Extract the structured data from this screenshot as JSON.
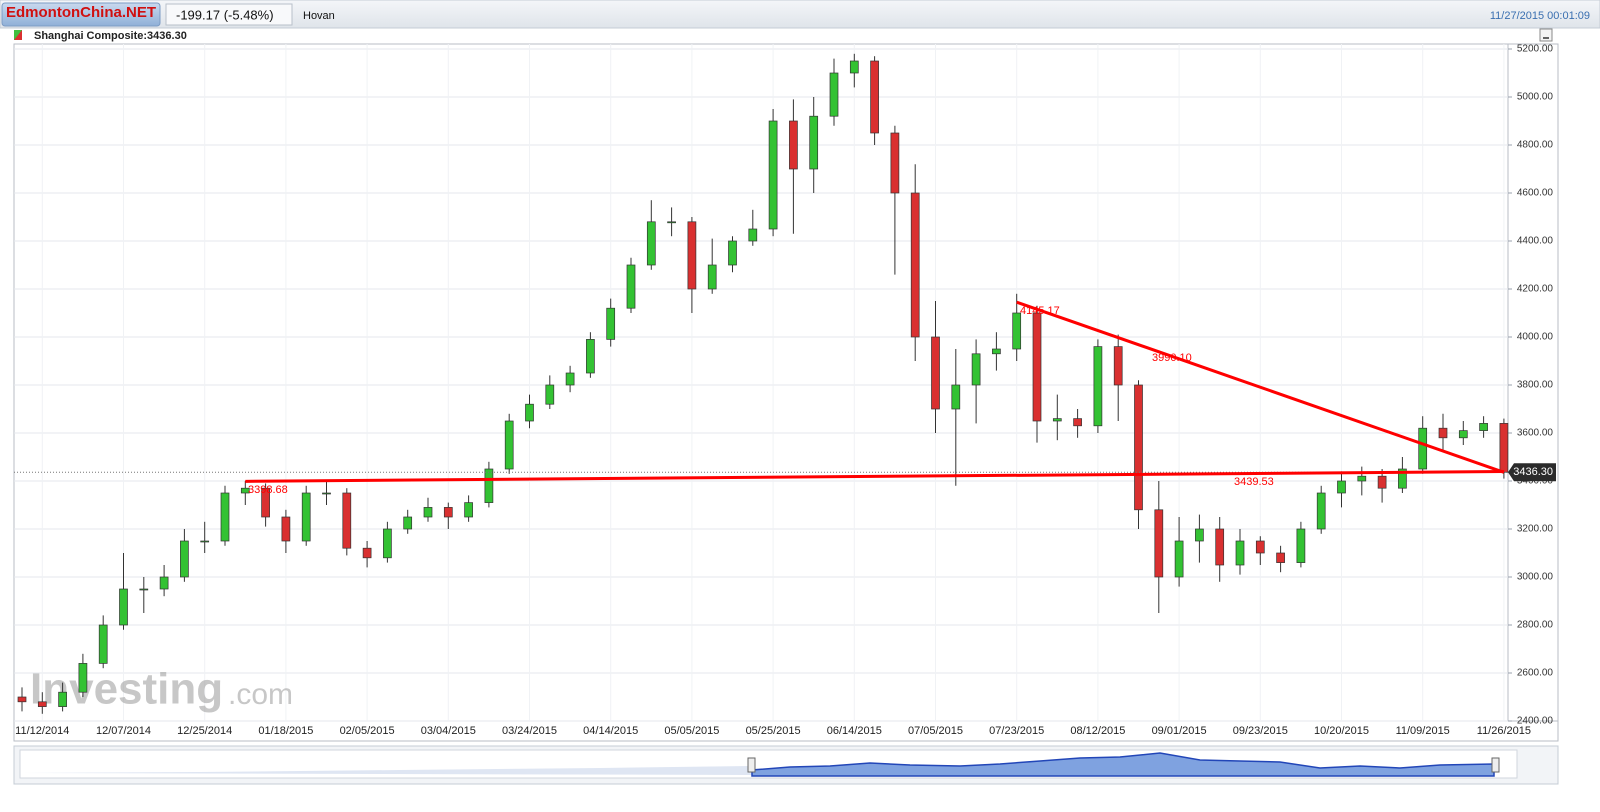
{
  "header": {
    "watermark": "EdmontonChina.NET",
    "change": "-199.17 (-5.48%)",
    "user": "Hovan",
    "timestamp": "11/27/2015 00:01:09"
  },
  "chart_data": {
    "type": "candlestick",
    "title": "Shanghai Composite:3436.30",
    "categories": [
      null,
      "11/12/2014",
      null,
      null,
      null,
      "12/07/2014",
      null,
      null,
      null,
      "12/25/2014",
      null,
      null,
      null,
      "01/18/2015",
      null,
      null,
      null,
      "02/05/2015",
      null,
      null,
      null,
      "03/04/2015",
      null,
      null,
      null,
      "03/24/2015",
      null,
      null,
      null,
      "04/14/2015",
      null,
      null,
      null,
      "05/05/2015",
      null,
      null,
      null,
      "05/25/2015",
      null,
      null,
      null,
      "06/14/2015",
      null,
      null,
      null,
      "07/05/2015",
      null,
      null,
      null,
      "07/23/2015",
      null,
      null,
      null,
      "08/12/2015",
      null,
      null,
      null,
      "09/01/2015",
      null,
      null,
      null,
      "09/23/2015",
      null,
      null,
      null,
      "10/20/2015",
      null,
      null,
      null,
      "11/09/2015",
      null,
      null,
      null,
      "11/26/2015"
    ],
    "open": [
      2500,
      2480,
      2460,
      2520,
      2640,
      2800,
      2950,
      2950,
      3000,
      3150,
      3150,
      3350,
      3370,
      3250,
      3150,
      3350,
      3350,
      3120,
      3080,
      3200,
      3250,
      3290,
      3250,
      3310,
      3450,
      3650,
      3720,
      3800,
      3850,
      3990,
      4120,
      4300,
      4480,
      4480,
      4200,
      4300,
      4400,
      4450,
      4900,
      4700,
      4920,
      5100,
      5150,
      4850,
      4600,
      4000,
      3700,
      3800,
      3930,
      3950,
      4100,
      3650,
      3660,
      3630,
      3960,
      3800,
      3280,
      3000,
      3150,
      3200,
      3050,
      3150,
      3100,
      3060,
      3200,
      3350,
      3400,
      3420,
      3370,
      3450,
      3620,
      3580,
      3610,
      3640
    ],
    "high": [
      2540,
      2520,
      2560,
      2680,
      2840,
      3100,
      3000,
      3050,
      3200,
      3230,
      3380,
      3400,
      3390,
      3280,
      3380,
      3400,
      3370,
      3150,
      3230,
      3280,
      3330,
      3310,
      3340,
      3480,
      3680,
      3760,
      3840,
      3880,
      4020,
      4160,
      4330,
      4570,
      4540,
      4500,
      4410,
      4420,
      4530,
      4950,
      4990,
      5000,
      5160,
      5180,
      5170,
      4880,
      4720,
      4150,
      3950,
      3990,
      4020,
      4180,
      4130,
      3760,
      3700,
      3990,
      4010,
      3820,
      3400,
      3250,
      3260,
      3250,
      3200,
      3170,
      3130,
      3230,
      3380,
      3440,
      3460,
      3450,
      3500,
      3670,
      3680,
      3650,
      3670,
      3660
    ],
    "low": [
      2440,
      2430,
      2440,
      2500,
      2620,
      2780,
      2850,
      2920,
      2980,
      3100,
      3130,
      3300,
      3210,
      3100,
      3130,
      3300,
      3090,
      3040,
      3060,
      3180,
      3230,
      3200,
      3230,
      3290,
      3430,
      3620,
      3700,
      3770,
      3830,
      3960,
      4100,
      4280,
      4420,
      4100,
      4180,
      4270,
      4380,
      4420,
      4430,
      4600,
      4880,
      5040,
      4800,
      4260,
      3900,
      3600,
      3380,
      3640,
      3860,
      3900,
      3560,
      3570,
      3580,
      3600,
      3650,
      3200,
      2850,
      2960,
      3060,
      2980,
      3010,
      3050,
      3020,
      3040,
      3180,
      3290,
      3340,
      3310,
      3350,
      3430,
      3530,
      3550,
      3580,
      3410
    ],
    "close": [
      2480,
      2460,
      2520,
      2640,
      2800,
      2950,
      2950,
      3000,
      3150,
      3150,
      3350,
      3370,
      3250,
      3150,
      3350,
      3350,
      3120,
      3080,
      3200,
      3250,
      3290,
      3250,
      3310,
      3450,
      3650,
      3720,
      3800,
      3850,
      3990,
      4120,
      4300,
      4480,
      4480,
      4200,
      4300,
      4400,
      4450,
      4900,
      4700,
      4920,
      5100,
      5150,
      4850,
      4600,
      4000,
      3700,
      3800,
      3930,
      3950,
      4100,
      3650,
      3660,
      3630,
      3960,
      3800,
      3280,
      3000,
      3150,
      3200,
      3050,
      3150,
      3100,
      3060,
      3200,
      3350,
      3400,
      3420,
      3370,
      3450,
      3620,
      3580,
      3610,
      3640,
      3436.3
    ],
    "up_color": "#33c233",
    "down_color": "#d93030",
    "ylim": [
      2400,
      5200
    ],
    "yticks": [
      {
        "value": 2400,
        "label": "2400.00"
      },
      {
        "value": 2600,
        "label": "2600.00"
      },
      {
        "value": 2800,
        "label": "2800.00"
      },
      {
        "value": 3000,
        "label": "3000.00"
      },
      {
        "value": 3200,
        "label": "3200.00"
      },
      {
        "value": 3400,
        "label": "3400.00"
      },
      {
        "value": 3600,
        "label": "3600.00"
      },
      {
        "value": 3800,
        "label": "3800.00"
      },
      {
        "value": 4000,
        "label": "4000.00"
      },
      {
        "value": 4200,
        "label": "4200.00"
      },
      {
        "value": 4400,
        "label": "4400.00"
      },
      {
        "value": 4600,
        "label": "4600.00"
      },
      {
        "value": 4800,
        "label": "4800.00"
      },
      {
        "value": 5000,
        "label": "5000.00"
      },
      {
        "value": 5200,
        "label": "5200.00"
      }
    ],
    "grid": true,
    "last_price": {
      "value": 3436.3,
      "label": "3436.30"
    },
    "trendline_color": "#ff0000",
    "trendlines": [
      {
        "start": 3398.68,
        "end": 3439.53
      },
      {
        "start": 4145.17,
        "end": 3436.3
      }
    ],
    "annotations": [
      3398.68,
      4145.17,
      {
        "value": 3990.1,
        "label": "3990.10"
      },
      3439.53
    ],
    "logo": [
      "Investing",
      ".com"
    ]
  }
}
